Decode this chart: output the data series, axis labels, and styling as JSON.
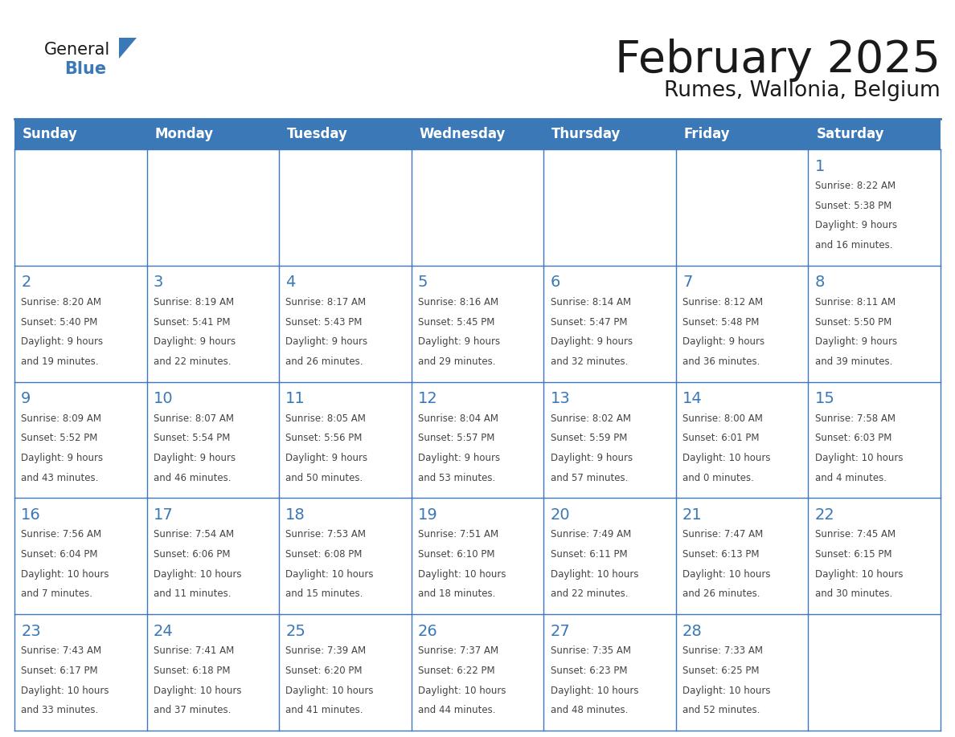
{
  "title": "February 2025",
  "subtitle": "Rumes, Wallonia, Belgium",
  "header_bg_color": "#3b78b8",
  "header_text_color": "#ffffff",
  "grid_color": "#3b78b8",
  "title_color": "#1a1a1a",
  "subtitle_color": "#1a1a1a",
  "day_num_color": "#3b78b8",
  "cell_text_color": "#444444",
  "logo_general_color": "#1a1a1a",
  "logo_blue_color": "#3b78b8",
  "day_headers": [
    "Sunday",
    "Monday",
    "Tuesday",
    "Wednesday",
    "Thursday",
    "Friday",
    "Saturday"
  ],
  "days": [
    {
      "day": 1,
      "col": 6,
      "row": 0,
      "sunrise": "8:22 AM",
      "sunset": "5:38 PM",
      "daylight_hrs": 9,
      "daylight_min": 16
    },
    {
      "day": 2,
      "col": 0,
      "row": 1,
      "sunrise": "8:20 AM",
      "sunset": "5:40 PM",
      "daylight_hrs": 9,
      "daylight_min": 19
    },
    {
      "day": 3,
      "col": 1,
      "row": 1,
      "sunrise": "8:19 AM",
      "sunset": "5:41 PM",
      "daylight_hrs": 9,
      "daylight_min": 22
    },
    {
      "day": 4,
      "col": 2,
      "row": 1,
      "sunrise": "8:17 AM",
      "sunset": "5:43 PM",
      "daylight_hrs": 9,
      "daylight_min": 26
    },
    {
      "day": 5,
      "col": 3,
      "row": 1,
      "sunrise": "8:16 AM",
      "sunset": "5:45 PM",
      "daylight_hrs": 9,
      "daylight_min": 29
    },
    {
      "day": 6,
      "col": 4,
      "row": 1,
      "sunrise": "8:14 AM",
      "sunset": "5:47 PM",
      "daylight_hrs": 9,
      "daylight_min": 32
    },
    {
      "day": 7,
      "col": 5,
      "row": 1,
      "sunrise": "8:12 AM",
      "sunset": "5:48 PM",
      "daylight_hrs": 9,
      "daylight_min": 36
    },
    {
      "day": 8,
      "col": 6,
      "row": 1,
      "sunrise": "8:11 AM",
      "sunset": "5:50 PM",
      "daylight_hrs": 9,
      "daylight_min": 39
    },
    {
      "day": 9,
      "col": 0,
      "row": 2,
      "sunrise": "8:09 AM",
      "sunset": "5:52 PM",
      "daylight_hrs": 9,
      "daylight_min": 43
    },
    {
      "day": 10,
      "col": 1,
      "row": 2,
      "sunrise": "8:07 AM",
      "sunset": "5:54 PM",
      "daylight_hrs": 9,
      "daylight_min": 46
    },
    {
      "day": 11,
      "col": 2,
      "row": 2,
      "sunrise": "8:05 AM",
      "sunset": "5:56 PM",
      "daylight_hrs": 9,
      "daylight_min": 50
    },
    {
      "day": 12,
      "col": 3,
      "row": 2,
      "sunrise": "8:04 AM",
      "sunset": "5:57 PM",
      "daylight_hrs": 9,
      "daylight_min": 53
    },
    {
      "day": 13,
      "col": 4,
      "row": 2,
      "sunrise": "8:02 AM",
      "sunset": "5:59 PM",
      "daylight_hrs": 9,
      "daylight_min": 57
    },
    {
      "day": 14,
      "col": 5,
      "row": 2,
      "sunrise": "8:00 AM",
      "sunset": "6:01 PM",
      "daylight_hrs": 10,
      "daylight_min": 0
    },
    {
      "day": 15,
      "col": 6,
      "row": 2,
      "sunrise": "7:58 AM",
      "sunset": "6:03 PM",
      "daylight_hrs": 10,
      "daylight_min": 4
    },
    {
      "day": 16,
      "col": 0,
      "row": 3,
      "sunrise": "7:56 AM",
      "sunset": "6:04 PM",
      "daylight_hrs": 10,
      "daylight_min": 7
    },
    {
      "day": 17,
      "col": 1,
      "row": 3,
      "sunrise": "7:54 AM",
      "sunset": "6:06 PM",
      "daylight_hrs": 10,
      "daylight_min": 11
    },
    {
      "day": 18,
      "col": 2,
      "row": 3,
      "sunrise": "7:53 AM",
      "sunset": "6:08 PM",
      "daylight_hrs": 10,
      "daylight_min": 15
    },
    {
      "day": 19,
      "col": 3,
      "row": 3,
      "sunrise": "7:51 AM",
      "sunset": "6:10 PM",
      "daylight_hrs": 10,
      "daylight_min": 18
    },
    {
      "day": 20,
      "col": 4,
      "row": 3,
      "sunrise": "7:49 AM",
      "sunset": "6:11 PM",
      "daylight_hrs": 10,
      "daylight_min": 22
    },
    {
      "day": 21,
      "col": 5,
      "row": 3,
      "sunrise": "7:47 AM",
      "sunset": "6:13 PM",
      "daylight_hrs": 10,
      "daylight_min": 26
    },
    {
      "day": 22,
      "col": 6,
      "row": 3,
      "sunrise": "7:45 AM",
      "sunset": "6:15 PM",
      "daylight_hrs": 10,
      "daylight_min": 30
    },
    {
      "day": 23,
      "col": 0,
      "row": 4,
      "sunrise": "7:43 AM",
      "sunset": "6:17 PM",
      "daylight_hrs": 10,
      "daylight_min": 33
    },
    {
      "day": 24,
      "col": 1,
      "row": 4,
      "sunrise": "7:41 AM",
      "sunset": "6:18 PM",
      "daylight_hrs": 10,
      "daylight_min": 37
    },
    {
      "day": 25,
      "col": 2,
      "row": 4,
      "sunrise": "7:39 AM",
      "sunset": "6:20 PM",
      "daylight_hrs": 10,
      "daylight_min": 41
    },
    {
      "day": 26,
      "col": 3,
      "row": 4,
      "sunrise": "7:37 AM",
      "sunset": "6:22 PM",
      "daylight_hrs": 10,
      "daylight_min": 44
    },
    {
      "day": 27,
      "col": 4,
      "row": 4,
      "sunrise": "7:35 AM",
      "sunset": "6:23 PM",
      "daylight_hrs": 10,
      "daylight_min": 48
    },
    {
      "day": 28,
      "col": 5,
      "row": 4,
      "sunrise": "7:33 AM",
      "sunset": "6:25 PM",
      "daylight_hrs": 10,
      "daylight_min": 52
    }
  ]
}
